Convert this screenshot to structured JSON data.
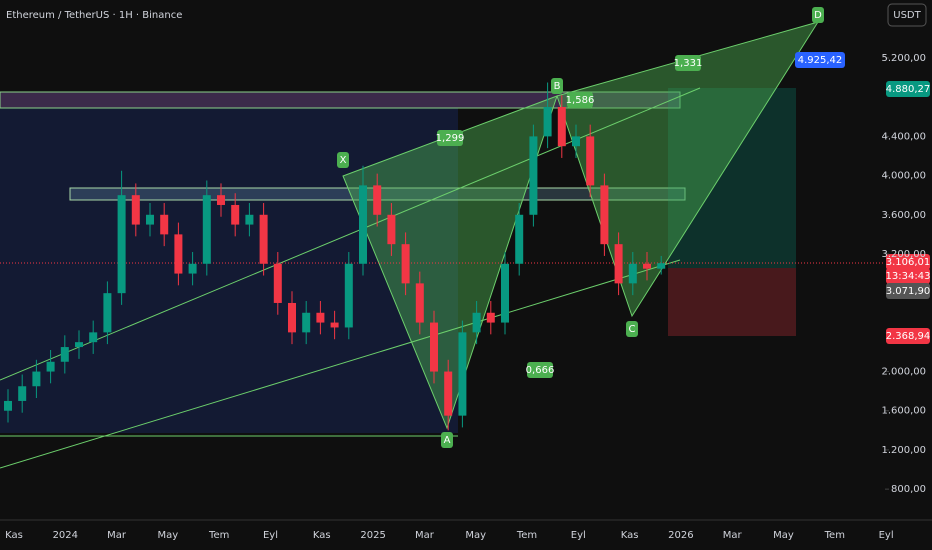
{
  "header": {
    "title": "Ethereum / TetherUS · 1H · Binance",
    "currency": "USDT"
  },
  "chart_data": {
    "type": "candlestick",
    "ylim": [
      485,
      5792
    ],
    "yticks": [
      {
        "value": 5200,
        "label": "5.200,00"
      },
      {
        "value": 4400,
        "label": "4.400,00"
      },
      {
        "value": 4000,
        "label": "4.000,00"
      },
      {
        "value": 3600,
        "label": "3.600,00"
      },
      {
        "value": 3200,
        "label": "3.200,00"
      },
      {
        "value": 2000,
        "label": "2.000,00"
      },
      {
        "value": 1600,
        "label": "1.600,00"
      },
      {
        "value": 1200,
        "label": "1.200,00"
      },
      {
        "value": 800,
        "label": "800,00"
      }
    ],
    "xticks": [
      "Kas",
      "2024",
      "Mar",
      "May",
      "Tem",
      "Eyl",
      "Kas",
      "2025",
      "Mar",
      "May",
      "Tem",
      "Eyl",
      "Kas",
      "2026",
      "Mar",
      "May",
      "Tem",
      "Eyl"
    ],
    "up_color": "#089981",
    "down_color": "#f23645",
    "open": [
      1600,
      1700,
      1850,
      2000,
      2100,
      2250,
      2300,
      2400,
      2800,
      3800,
      3500,
      3600,
      3400,
      3000,
      3100,
      3800,
      3700,
      3500,
      3600,
      3100,
      2700,
      2400,
      2600,
      2500,
      2450,
      3100,
      3900,
      3600,
      3300,
      2900,
      2500,
      2000,
      1550,
      2400,
      2600,
      2500,
      3100,
      3600,
      4400,
      4700,
      4300,
      4400,
      3900,
      3300,
      2900,
      3100,
      3050
    ],
    "high": [
      1820,
      1970,
      2120,
      2220,
      2370,
      2420,
      2520,
      2920,
      4050,
      3920,
      3720,
      3720,
      3520,
      3220,
      3950,
      3920,
      3820,
      3720,
      3720,
      3220,
      2820,
      2720,
      2720,
      2620,
      3220,
      4100,
      4020,
      3720,
      3420,
      3020,
      2620,
      2120,
      2520,
      2720,
      2720,
      3220,
      3720,
      4520,
      4950,
      4820,
      4520,
      4520,
      4020,
      3420,
      3220,
      3220,
      3180
    ],
    "low": [
      1480,
      1580,
      1730,
      1880,
      1980,
      2130,
      2180,
      2280,
      2680,
      3380,
      3380,
      3280,
      2880,
      2880,
      2980,
      3580,
      3380,
      3380,
      2980,
      2580,
      2280,
      2280,
      2380,
      2330,
      2330,
      2980,
      3480,
      3180,
      2780,
      2380,
      1880,
      1400,
      1430,
      2280,
      2380,
      2380,
      2980,
      3480,
      4280,
      4180,
      4180,
      3780,
      3180,
      2780,
      2780,
      2930,
      2990
    ],
    "close": [
      1700,
      1850,
      2000,
      2100,
      2250,
      2300,
      2400,
      2800,
      3800,
      3500,
      3600,
      3400,
      3000,
      3100,
      3800,
      3700,
      3500,
      3600,
      3100,
      2700,
      2400,
      2600,
      2500,
      2450,
      3100,
      3900,
      3600,
      3300,
      2900,
      2500,
      2000,
      1550,
      2400,
      2600,
      2500,
      3100,
      3600,
      4400,
      4700,
      4300,
      4400,
      3900,
      3300,
      2900,
      3100,
      3050,
      3106
    ],
    "pattern_points": [
      "X",
      "A",
      "B",
      "C",
      "D"
    ],
    "ratios": [
      "1,299",
      "0,666",
      "1,586",
      "1,331"
    ],
    "price_labels": {
      "target": "4.925,42",
      "stop_high": "4.880,27",
      "last": "3.106,01",
      "countdown": "13:34:43",
      "entry": "3.071,90",
      "stop": "2.368,94"
    }
  }
}
